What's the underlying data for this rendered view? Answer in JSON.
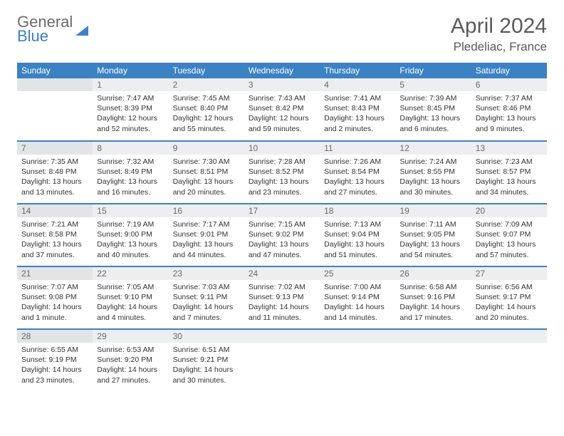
{
  "logo": {
    "line1": "General",
    "line2": "Blue"
  },
  "title": "April 2024",
  "location": "Pledeliac, France",
  "colors": {
    "header_bg": "#3b82c4",
    "header_text": "#ffffff",
    "daynum_bg": "#eceeef",
    "daynum_bg_alt": "#e2e4e5",
    "text": "#333333",
    "title_text": "#5a5a5a",
    "border": "#3b82c4"
  },
  "weekdays": [
    "Sunday",
    "Monday",
    "Tuesday",
    "Wednesday",
    "Thursday",
    "Friday",
    "Saturday"
  ],
  "weeks": [
    [
      {
        "n": "",
        "sunrise": "",
        "sunset": "",
        "daylight": ""
      },
      {
        "n": "1",
        "sunrise": "7:47 AM",
        "sunset": "8:39 PM",
        "daylight": "12 hours and 52 minutes."
      },
      {
        "n": "2",
        "sunrise": "7:45 AM",
        "sunset": "8:40 PM",
        "daylight": "12 hours and 55 minutes."
      },
      {
        "n": "3",
        "sunrise": "7:43 AM",
        "sunset": "8:42 PM",
        "daylight": "12 hours and 59 minutes."
      },
      {
        "n": "4",
        "sunrise": "7:41 AM",
        "sunset": "8:43 PM",
        "daylight": "13 hours and 2 minutes."
      },
      {
        "n": "5",
        "sunrise": "7:39 AM",
        "sunset": "8:45 PM",
        "daylight": "13 hours and 6 minutes."
      },
      {
        "n": "6",
        "sunrise": "7:37 AM",
        "sunset": "8:46 PM",
        "daylight": "13 hours and 9 minutes."
      }
    ],
    [
      {
        "n": "7",
        "sunrise": "7:35 AM",
        "sunset": "8:48 PM",
        "daylight": "13 hours and 13 minutes."
      },
      {
        "n": "8",
        "sunrise": "7:32 AM",
        "sunset": "8:49 PM",
        "daylight": "13 hours and 16 minutes."
      },
      {
        "n": "9",
        "sunrise": "7:30 AM",
        "sunset": "8:51 PM",
        "daylight": "13 hours and 20 minutes."
      },
      {
        "n": "10",
        "sunrise": "7:28 AM",
        "sunset": "8:52 PM",
        "daylight": "13 hours and 23 minutes."
      },
      {
        "n": "11",
        "sunrise": "7:26 AM",
        "sunset": "8:54 PM",
        "daylight": "13 hours and 27 minutes."
      },
      {
        "n": "12",
        "sunrise": "7:24 AM",
        "sunset": "8:55 PM",
        "daylight": "13 hours and 30 minutes."
      },
      {
        "n": "13",
        "sunrise": "7:23 AM",
        "sunset": "8:57 PM",
        "daylight": "13 hours and 34 minutes."
      }
    ],
    [
      {
        "n": "14",
        "sunrise": "7:21 AM",
        "sunset": "8:58 PM",
        "daylight": "13 hours and 37 minutes."
      },
      {
        "n": "15",
        "sunrise": "7:19 AM",
        "sunset": "9:00 PM",
        "daylight": "13 hours and 40 minutes."
      },
      {
        "n": "16",
        "sunrise": "7:17 AM",
        "sunset": "9:01 PM",
        "daylight": "13 hours and 44 minutes."
      },
      {
        "n": "17",
        "sunrise": "7:15 AM",
        "sunset": "9:02 PM",
        "daylight": "13 hours and 47 minutes."
      },
      {
        "n": "18",
        "sunrise": "7:13 AM",
        "sunset": "9:04 PM",
        "daylight": "13 hours and 51 minutes."
      },
      {
        "n": "19",
        "sunrise": "7:11 AM",
        "sunset": "9:05 PM",
        "daylight": "13 hours and 54 minutes."
      },
      {
        "n": "20",
        "sunrise": "7:09 AM",
        "sunset": "9:07 PM",
        "daylight": "13 hours and 57 minutes."
      }
    ],
    [
      {
        "n": "21",
        "sunrise": "7:07 AM",
        "sunset": "9:08 PM",
        "daylight": "14 hours and 1 minute."
      },
      {
        "n": "22",
        "sunrise": "7:05 AM",
        "sunset": "9:10 PM",
        "daylight": "14 hours and 4 minutes."
      },
      {
        "n": "23",
        "sunrise": "7:03 AM",
        "sunset": "9:11 PM",
        "daylight": "14 hours and 7 minutes."
      },
      {
        "n": "24",
        "sunrise": "7:02 AM",
        "sunset": "9:13 PM",
        "daylight": "14 hours and 11 minutes."
      },
      {
        "n": "25",
        "sunrise": "7:00 AM",
        "sunset": "9:14 PM",
        "daylight": "14 hours and 14 minutes."
      },
      {
        "n": "26",
        "sunrise": "6:58 AM",
        "sunset": "9:16 PM",
        "daylight": "14 hours and 17 minutes."
      },
      {
        "n": "27",
        "sunrise": "6:56 AM",
        "sunset": "9:17 PM",
        "daylight": "14 hours and 20 minutes."
      }
    ],
    [
      {
        "n": "28",
        "sunrise": "6:55 AM",
        "sunset": "9:19 PM",
        "daylight": "14 hours and 23 minutes."
      },
      {
        "n": "29",
        "sunrise": "6:53 AM",
        "sunset": "9:20 PM",
        "daylight": "14 hours and 27 minutes."
      },
      {
        "n": "30",
        "sunrise": "6:51 AM",
        "sunset": "9:21 PM",
        "daylight": "14 hours and 30 minutes."
      },
      {
        "n": "",
        "sunrise": "",
        "sunset": "",
        "daylight": ""
      },
      {
        "n": "",
        "sunrise": "",
        "sunset": "",
        "daylight": ""
      },
      {
        "n": "",
        "sunrise": "",
        "sunset": "",
        "daylight": ""
      },
      {
        "n": "",
        "sunrise": "",
        "sunset": "",
        "daylight": ""
      }
    ]
  ],
  "labels": {
    "sunrise": "Sunrise:",
    "sunset": "Sunset:",
    "daylight": "Daylight:"
  }
}
